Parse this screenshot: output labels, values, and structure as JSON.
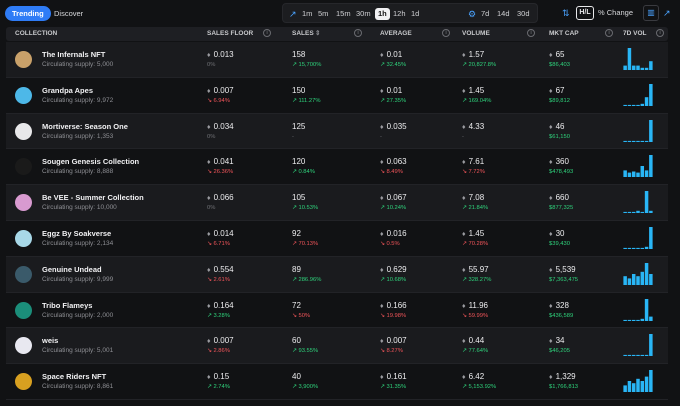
{
  "topbar": {
    "trending_label": "Trending",
    "discover_label": "Discover",
    "timeframes": [
      "1m",
      "5m",
      "15m",
      "30m",
      "1h",
      "12h",
      "1d"
    ],
    "active_timeframe": "1h",
    "timeframes_long": [
      "7d",
      "14d",
      "30d"
    ],
    "hl_label": "H/L",
    "percent_change_label": "% Change"
  },
  "columns": {
    "collection": "COLLECTION",
    "sales_floor": "SALES FLOOR",
    "sales": "SALES",
    "average": "AVERAGE",
    "volume": "VOLUME",
    "mkt_cap": "MKT CAP",
    "vol7d": "7D VOL"
  },
  "colors": {
    "accent": "#2f7cf6",
    "up": "#2fd37c",
    "down": "#f2555a",
    "bars": "#29b6f6"
  },
  "rows": [
    {
      "name": "The Infernals NFT",
      "supply": "Circulating supply: 5,000",
      "floor": "0.013",
      "floor_chg": "0%",
      "floor_dir": "nu",
      "sales": "158",
      "sales_chg": "↗ 15,700%",
      "sales_dir": "up",
      "avg": "0.01",
      "avg_chg": "↗ 32.45%",
      "avg_dir": "up",
      "vol": "1.57",
      "vol_chg": "↗ 20,827.8%",
      "vol_dir": "up",
      "cap": "65",
      "cap_usd": "$86,403",
      "bars": [
        0.2,
        1,
        0.2,
        0.2,
        0.1,
        0.1,
        0.4
      ],
      "avatar": "#c9a16a"
    },
    {
      "name": "Grandpa Apes",
      "supply": "Circulating supply: 9,972",
      "floor": "0.007",
      "floor_chg": "↘ 6.94%",
      "floor_dir": "dn",
      "sales": "150",
      "sales_chg": "↗ 111.27%",
      "sales_dir": "up",
      "avg": "0.01",
      "avg_chg": "↗ 27.35%",
      "avg_dir": "up",
      "vol": "1.45",
      "vol_chg": "↗ 169.04%",
      "vol_dir": "up",
      "cap": "67",
      "cap_usd": "$89,812",
      "bars": [
        0.05,
        0.05,
        0.05,
        0.05,
        0.1,
        0.4,
        1
      ],
      "avatar": "#4db8e8"
    },
    {
      "name": "Mortiverse: Season One",
      "supply": "Circulating supply: 1,353",
      "floor": "0.034",
      "floor_chg": "0%",
      "floor_dir": "nu",
      "sales": "125",
      "sales_chg": "-",
      "sales_dir": "nu",
      "avg": "0.035",
      "avg_chg": "-",
      "avg_dir": "nu",
      "vol": "4.33",
      "vol_chg": "-",
      "vol_dir": "nu",
      "cap": "46",
      "cap_usd": "$61,150",
      "bars": [
        0.05,
        0.05,
        0.05,
        0.05,
        0.05,
        0.05,
        1
      ],
      "avatar": "#e8e8ea"
    },
    {
      "name": "Sougen Genesis Collection",
      "supply": "Circulating supply: 8,888",
      "floor": "0.041",
      "floor_chg": "↘ 26.36%",
      "floor_dir": "dn",
      "sales": "120",
      "sales_chg": "↗ 0.84%",
      "sales_dir": "up",
      "avg": "0.063",
      "avg_chg": "↘ 8.49%",
      "avg_dir": "dn",
      "vol": "7.61",
      "vol_chg": "↘ 7.72%",
      "vol_dir": "dn",
      "cap": "360",
      "cap_usd": "$478,493",
      "bars": [
        0.3,
        0.2,
        0.25,
        0.2,
        0.5,
        0.3,
        1
      ],
      "avatar": "#1a1a1a"
    },
    {
      "name": "Be VEE - Summer Collection",
      "supply": "Circulating supply: 10,000",
      "floor": "0.066",
      "floor_chg": "0%",
      "floor_dir": "nu",
      "sales": "105",
      "sales_chg": "↗ 10.53%",
      "sales_dir": "up",
      "avg": "0.067",
      "avg_chg": "↗ 10.24%",
      "avg_dir": "up",
      "vol": "7.08",
      "vol_chg": "↗ 21.84%",
      "vol_dir": "up",
      "cap": "660",
      "cap_usd": "$877,325",
      "bars": [
        0.05,
        0.05,
        0.05,
        0.1,
        0.05,
        1,
        0.1
      ],
      "avatar": "#d89ad0"
    },
    {
      "name": "Eggz By Soakverse",
      "supply": "Circulating supply: 2,134",
      "floor": "0.014",
      "floor_chg": "↘ 6.71%",
      "floor_dir": "dn",
      "sales": "92",
      "sales_chg": "↗ 70.13%",
      "sales_dir": "dn",
      "avg": "0.016",
      "avg_chg": "↘ 0.5%",
      "avg_dir": "dn",
      "vol": "1.45",
      "vol_chg": "↗ 70.28%",
      "vol_dir": "dn",
      "cap": "30",
      "cap_usd": "$39,430",
      "bars": [
        0.05,
        0.05,
        0.05,
        0.05,
        0.05,
        0.1,
        1
      ],
      "avatar": "#a8d8e8"
    },
    {
      "name": "Genuine Undead",
      "supply": "Circulating supply: 9,999",
      "floor": "0.554",
      "floor_chg": "↘ 2.61%",
      "floor_dir": "dn",
      "sales": "89",
      "sales_chg": "↗ 286.96%",
      "sales_dir": "up",
      "avg": "0.629",
      "avg_chg": "↗ 10.68%",
      "avg_dir": "up",
      "vol": "55.97",
      "vol_chg": "↗ 328.27%",
      "vol_dir": "up",
      "cap": "5,539",
      "cap_usd": "$7,363,475",
      "bars": [
        0.4,
        0.3,
        0.5,
        0.4,
        0.6,
        1,
        0.5
      ],
      "avatar": "#3a5a6a"
    },
    {
      "name": "Tribo Flameys",
      "supply": "Circulating supply: 2,000",
      "floor": "0.164",
      "floor_chg": "↗ 3.28%",
      "floor_dir": "up",
      "sales": "72",
      "sales_chg": "↘ 50%",
      "sales_dir": "dn",
      "avg": "0.166",
      "avg_chg": "↘ 19.98%",
      "avg_dir": "dn",
      "vol": "11.96",
      "vol_chg": "↘ 59.99%",
      "vol_dir": "dn",
      "cap": "328",
      "cap_usd": "$436,589",
      "bars": [
        0.05,
        0.05,
        0.05,
        0.05,
        0.1,
        1,
        0.2
      ],
      "avatar": "#1b8e7a"
    },
    {
      "name": "weis",
      "supply": "Circulating supply: 5,001",
      "floor": "0.007",
      "floor_chg": "↘ 2.86%",
      "floor_dir": "dn",
      "sales": "60",
      "sales_chg": "↗ 93.55%",
      "sales_dir": "up",
      "avg": "0.007",
      "avg_chg": "↘ 8.27%",
      "avg_dir": "dn",
      "vol": "0.44",
      "vol_chg": "↗ 77.64%",
      "vol_dir": "up",
      "cap": "34",
      "cap_usd": "$46,205",
      "bars": [
        0.05,
        0.05,
        0.05,
        0.05,
        0.05,
        0.05,
        1
      ],
      "avatar": "#e8e8f0"
    },
    {
      "name": "Space Riders NFT",
      "supply": "Circulating supply: 8,861",
      "floor": "0.15",
      "floor_chg": "↗ 2.74%",
      "floor_dir": "up",
      "sales": "40",
      "sales_chg": "↗ 3,900%",
      "sales_dir": "up",
      "avg": "0.161",
      "avg_chg": "↗ 31.35%",
      "avg_dir": "up",
      "vol": "6.42",
      "vol_chg": "↗ 5,153.92%",
      "vol_dir": "up",
      "cap": "1,329",
      "cap_usd": "$1,766,813",
      "bars": [
        0.3,
        0.5,
        0.4,
        0.6,
        0.5,
        0.7,
        1
      ],
      "avatar": "#d8a020"
    }
  ]
}
